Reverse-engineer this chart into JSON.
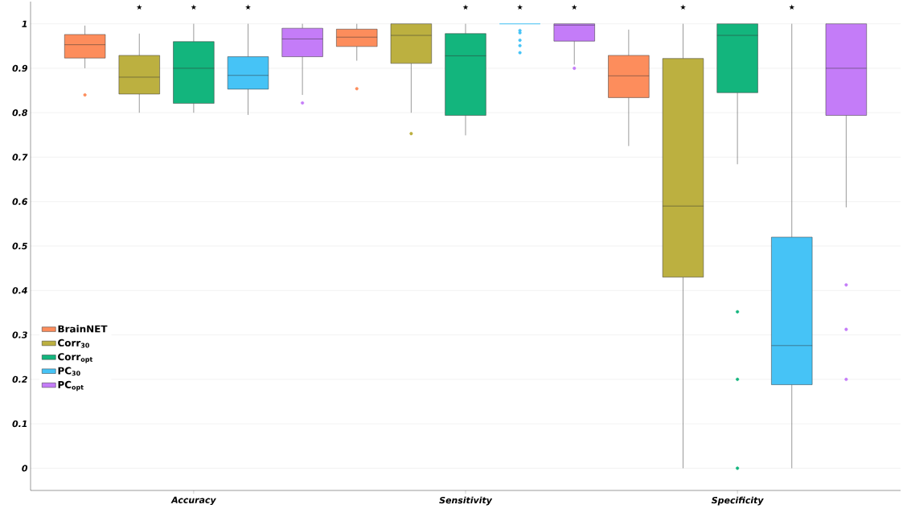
{
  "chart_data": {
    "type": "box",
    "categories": [
      "Accuracy",
      "Sensitivity",
      "Specificity"
    ],
    "series": [
      {
        "name": "BrainNET",
        "color": "#fd8d5c",
        "boxes": [
          {
            "low": 0.9,
            "q1": 0.923,
            "median": 0.953,
            "q3": 0.976,
            "high": 0.996,
            "outliers": [
              0.84
            ]
          },
          {
            "low": 0.917,
            "q1": 0.949,
            "median": 0.97,
            "q3": 0.988,
            "high": 1.0,
            "outliers": [
              0.854
            ]
          },
          {
            "low": 0.725,
            "q1": 0.834,
            "median": 0.883,
            "q3": 0.929,
            "high": 0.987
          }
        ]
      },
      {
        "name": "Corr$_{30}$",
        "color": "#bcb040",
        "boxes": [
          {
            "low": 0.8,
            "q1": 0.842,
            "median": 0.88,
            "q3": 0.929,
            "high": 0.978
          },
          {
            "low": 0.8,
            "q1": 0.911,
            "median": 0.974,
            "q3": 1.0,
            "high": 1.0,
            "outliers": [
              0.753
            ]
          },
          {
            "low": 0.0,
            "q1": 0.43,
            "median": 0.59,
            "q3": 0.922,
            "high": 1.0
          }
        ]
      },
      {
        "name": "Corr$_{opt}$",
        "color": "#13b57d",
        "boxes": [
          {
            "low": 0.8,
            "q1": 0.821,
            "median": 0.9,
            "q3": 0.96,
            "high": 1.0
          },
          {
            "low": 0.749,
            "q1": 0.794,
            "median": 0.928,
            "q3": 0.978,
            "high": 1.0
          },
          {
            "low": 0.684,
            "q1": 0.845,
            "median": 0.974,
            "q3": 1.0,
            "high": 1.0,
            "outliers": [
              0.352,
              0.2,
              0.0
            ]
          }
        ]
      },
      {
        "name": "PC$_{30}$",
        "color": "#46c3f6",
        "boxes": [
          {
            "low": 0.795,
            "q1": 0.853,
            "median": 0.884,
            "q3": 0.926,
            "high": 1.0
          },
          {
            "low": 1.0,
            "q1": 1.0,
            "median": 1.0,
            "q3": 1.0,
            "high": 1.0,
            "outliers": [
              0.985,
              0.98,
              0.963,
              0.951,
              0.935
            ]
          },
          {
            "low": 0.0,
            "q1": 0.188,
            "median": 0.276,
            "q3": 0.52,
            "high": 1.0
          }
        ]
      },
      {
        "name": "PC$_{opt}$",
        "color": "#c47cf8",
        "boxes": [
          {
            "low": 0.84,
            "q1": 0.926,
            "median": 0.966,
            "q3": 0.99,
            "high": 1.0,
            "outliers": [
              0.822
            ]
          },
          {
            "low": 0.908,
            "q1": 0.961,
            "median": 0.997,
            "q3": 1.0,
            "high": 1.0,
            "outliers": [
              0.9
            ]
          },
          {
            "low": 0.587,
            "q1": 0.794,
            "median": 0.9,
            "q3": 1.0,
            "high": 1.0,
            "outliers": [
              0.4125,
              0.3125,
              0.2
            ]
          }
        ]
      }
    ],
    "ylim": [
      -0.05,
      1.05
    ],
    "yticks": [
      0,
      0.1,
      0.2,
      0.3,
      0.4,
      0.5,
      0.6,
      0.7,
      0.8,
      0.9,
      1
    ],
    "grid": "y",
    "legend": "bottom left",
    "annotations": [
      "★",
      "★",
      "★",
      "★",
      "★",
      "★",
      "★",
      "★"
    ]
  }
}
